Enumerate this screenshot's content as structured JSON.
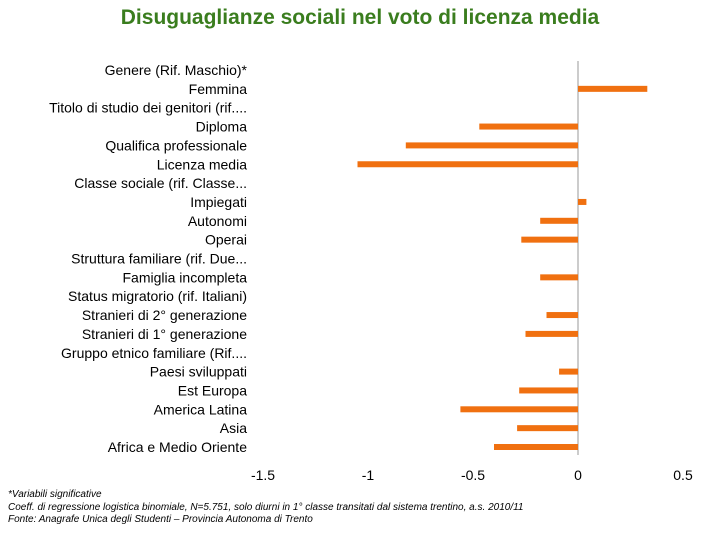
{
  "colors": {
    "title": "#3a7d1e",
    "bar": "#f07010",
    "axis": "#999999",
    "text": "#000000"
  },
  "chart_data": {
    "type": "bar",
    "orientation": "horizontal",
    "title": "Disuguaglianze sociali nel voto di licenza media",
    "categories": [
      "Genere (Rif. Maschio)*",
      "Femmina",
      "Titolo di studio dei genitori (rif....",
      "Diploma",
      "Qualifica professionale",
      "Licenza media",
      "Classe sociale (rif. Classe...",
      "Impiegati",
      "Autonomi",
      "Operai",
      "Struttura familiare  (rif. Due...",
      "Famiglia incompleta",
      "Status migratorio (rif. Italiani)",
      "Stranieri di 2° generazione",
      "Stranieri di 1° generazione",
      "Gruppo etnico familiare (Rif....",
      "Paesi sviluppati",
      "Est Europa",
      "America Latina",
      "Asia",
      "Africa e Medio Oriente"
    ],
    "values": [
      0,
      0.33,
      0,
      -0.47,
      -0.82,
      -1.05,
      0,
      0.04,
      -0.18,
      -0.27,
      0,
      -0.18,
      0,
      -0.15,
      -0.25,
      0,
      -0.09,
      -0.28,
      -0.56,
      -0.29,
      -0.4
    ],
    "xlim": [
      -1.5,
      0.5
    ],
    "xticks": [
      -1.5,
      -1,
      -0.5,
      0,
      0.5
    ],
    "xtick_labels": [
      "-1.5",
      "-1",
      "-0.5",
      "0",
      "0.5"
    ],
    "grid": false
  },
  "notes": {
    "line1": "*Variabili significative",
    "line2": "Coeff. di regressione logistica binomiale, N=5.751, solo diurni in 1° classe transitati dal sistema trentino, a.s. 2010/11",
    "line3": "Fonte: Anagrafe Unica degli Studenti – Provincia Autonoma di Trento"
  }
}
